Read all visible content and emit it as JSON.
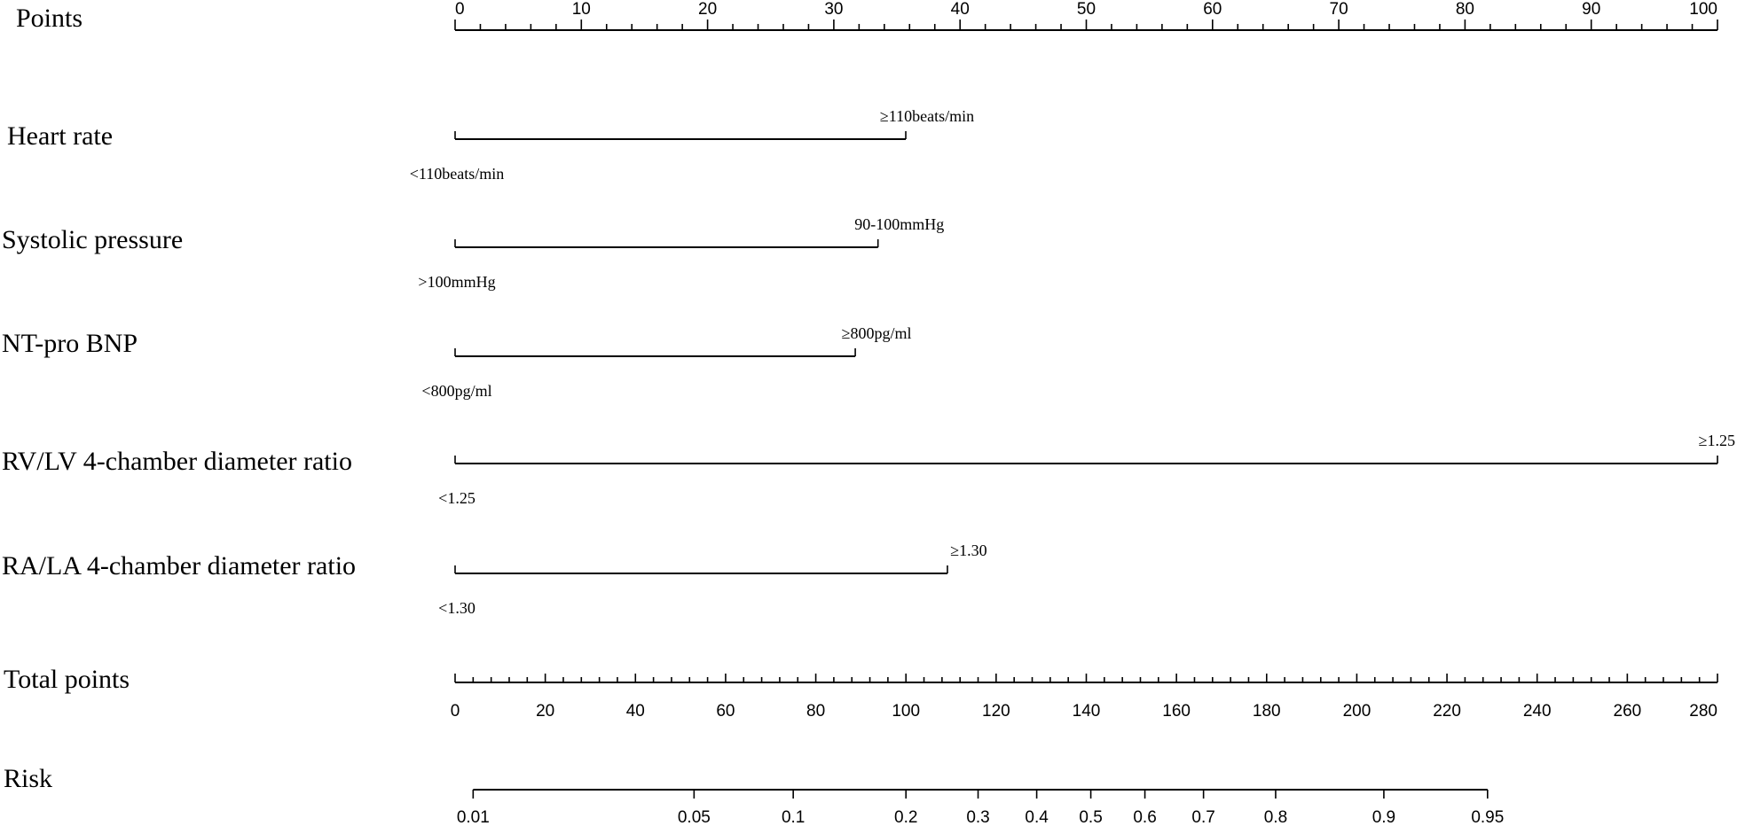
{
  "chart_data": {
    "type": "nomogram",
    "points_axis": {
      "label": "Points",
      "range": [
        0,
        100
      ],
      "major_ticks": [
        0,
        10,
        20,
        30,
        40,
        50,
        60,
        70,
        80,
        90,
        100
      ],
      "minor_step": 2
    },
    "predictors": [
      {
        "name": "Heart rate",
        "points": [
          0,
          35.7
        ],
        "labels": [
          "<110beats/min",
          "≥110beats/min"
        ]
      },
      {
        "name": "Systolic pressure",
        "points": [
          0,
          33.5
        ],
        "labels": [
          ">100mmHg",
          "90-100mmHg"
        ]
      },
      {
        "name": "NT-pro BNP",
        "points": [
          0,
          31.7
        ],
        "labels": [
          "<800pg/ml",
          "≥800pg/ml"
        ]
      },
      {
        "name": "RV/LV 4-chamber diameter ratio",
        "points": [
          0,
          100
        ],
        "labels": [
          "<1.25",
          "≥1.25"
        ]
      },
      {
        "name": "RA/LA 4-chamber diameter ratio",
        "points": [
          0,
          39
        ],
        "labels": [
          "<1.30",
          "≥1.30"
        ]
      }
    ],
    "total_points_axis": {
      "label": "Total points",
      "range": [
        0,
        280
      ],
      "major_ticks": [
        0,
        20,
        40,
        60,
        80,
        100,
        120,
        140,
        160,
        180,
        200,
        220,
        240,
        260,
        280
      ],
      "minor_step": 4
    },
    "risk_axis": {
      "label": "Risk",
      "ticks": [
        {
          "label": "0.01",
          "total_points": 4
        },
        {
          "label": "0.05",
          "total_points": 53
        },
        {
          "label": "0.1",
          "total_points": 75
        },
        {
          "label": "0.2",
          "total_points": 100
        },
        {
          "label": "0.3",
          "total_points": 116
        },
        {
          "label": "0.4",
          "total_points": 129
        },
        {
          "label": "0.5",
          "total_points": 141
        },
        {
          "label": "0.6",
          "total_points": 153
        },
        {
          "label": "0.7",
          "total_points": 166
        },
        {
          "label": "0.8",
          "total_points": 182
        },
        {
          "label": "0.9",
          "total_points": 206
        },
        {
          "label": "0.95",
          "total_points": 229
        }
      ]
    }
  }
}
